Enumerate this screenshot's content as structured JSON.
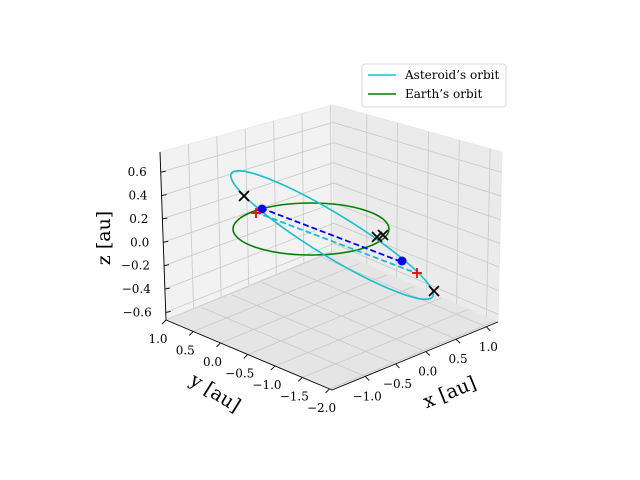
{
  "chart_data": {
    "type": "line",
    "projection": "3d",
    "legend": {
      "placement": "top-right",
      "entries": [
        {
          "label": "Asteroid’s orbit",
          "color": "#17becf"
        },
        {
          "label": "Earth’s orbit",
          "color": "#008000"
        }
      ]
    },
    "axes": {
      "x": {
        "label": "x [au]",
        "ticks": [
          "−1.0",
          "−0.5",
          "0.0",
          "0.5",
          "1.0"
        ]
      },
      "y": {
        "label": "y [au]",
        "ticks": [
          "1.0",
          "0.5",
          "0.0",
          "−0.5",
          "−1.0",
          "−1.5",
          "−2.0"
        ]
      },
      "z": {
        "label": "z [au]",
        "ticks": [
          "0.6",
          "0.4",
          "0.2",
          "0.0",
          "−0.2",
          "−0.4",
          "−0.6"
        ]
      }
    },
    "grid": true,
    "series": [
      {
        "name": "Asteroid’s orbit",
        "kind": "ellipse",
        "color": "#17becf"
      },
      {
        "name": "Earth’s orbit",
        "kind": "ellipse",
        "color": "#008000"
      }
    ],
    "markers": {
      "blue_points": 2,
      "red_plus": 2,
      "black_x": 4,
      "dashed_links": [
        {
          "color": "#0000ff",
          "style": "dashed"
        },
        {
          "color": "#17becf",
          "style": "dashed"
        }
      ]
    }
  }
}
